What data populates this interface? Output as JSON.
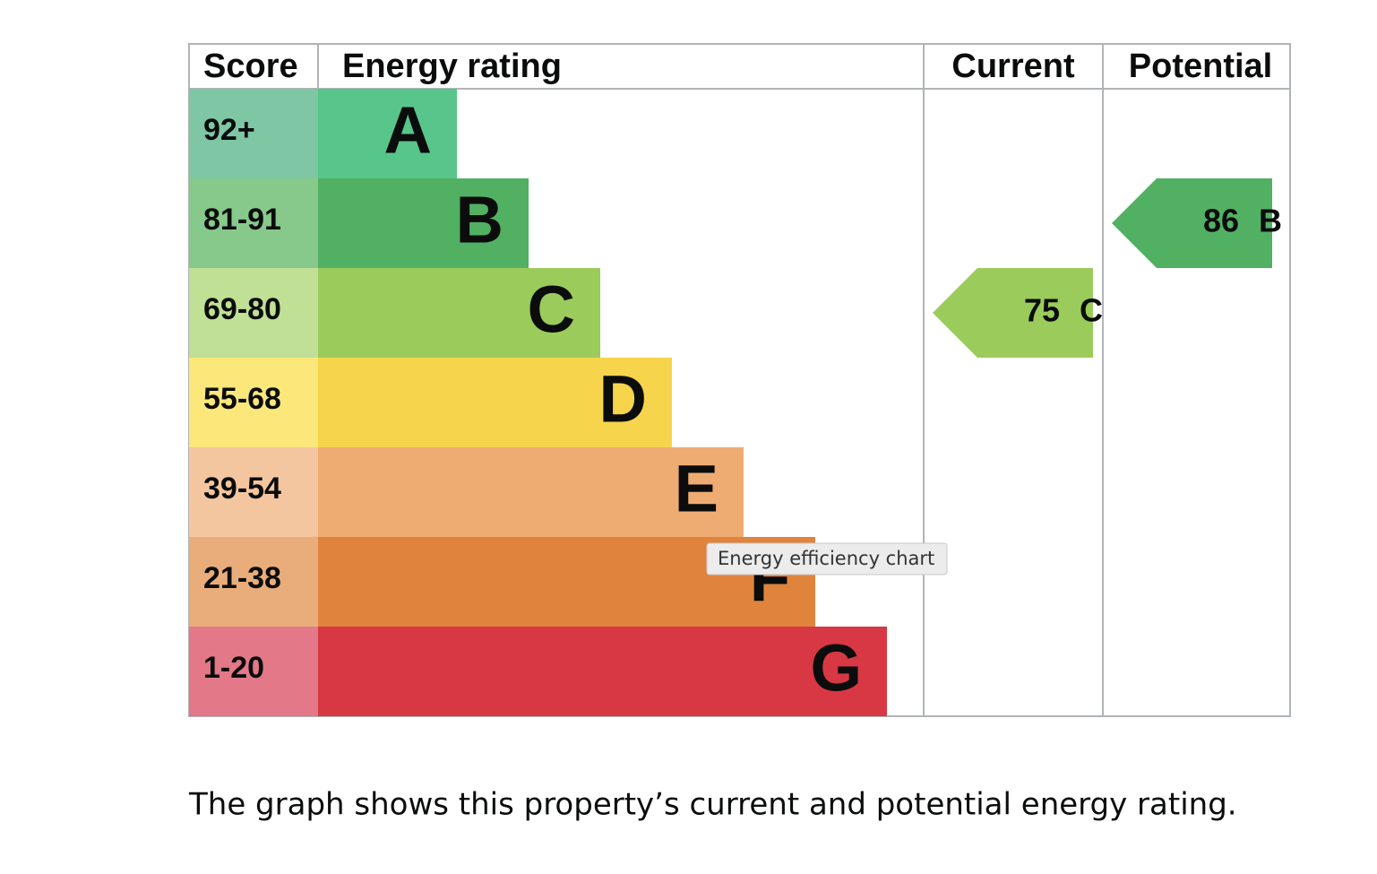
{
  "header": {
    "score": "Score",
    "energy_rating": "Energy rating",
    "current": "Current",
    "potential": "Potential"
  },
  "bands": [
    {
      "score": "92+",
      "letter": "A",
      "color": "#58c58a",
      "score_color": "#7fc6a5"
    },
    {
      "score": "81-91",
      "letter": "B",
      "color": "#52b063",
      "score_color": "#86c98a"
    },
    {
      "score": "69-80",
      "letter": "C",
      "color": "#9bcb5b",
      "score_color": "#bfe095"
    },
    {
      "score": "55-68",
      "letter": "D",
      "color": "#f6d44b",
      "score_color": "#fbe77a"
    },
    {
      "score": "39-54",
      "letter": "E",
      "color": "#efac72",
      "score_color": "#f4c6a0"
    },
    {
      "score": "21-38",
      "letter": "F",
      "color": "#e0843d",
      "score_color": "#e9ad7b"
    },
    {
      "score": "1-20",
      "letter": "G",
      "color": "#d73843",
      "score_color": "#e27888"
    }
  ],
  "current": {
    "score": 75,
    "letter": "C"
  },
  "potential": {
    "score": 86,
    "letter": "B"
  },
  "tooltip": "Energy efficiency chart",
  "caption": "The graph shows this property’s current and potential energy rating."
}
